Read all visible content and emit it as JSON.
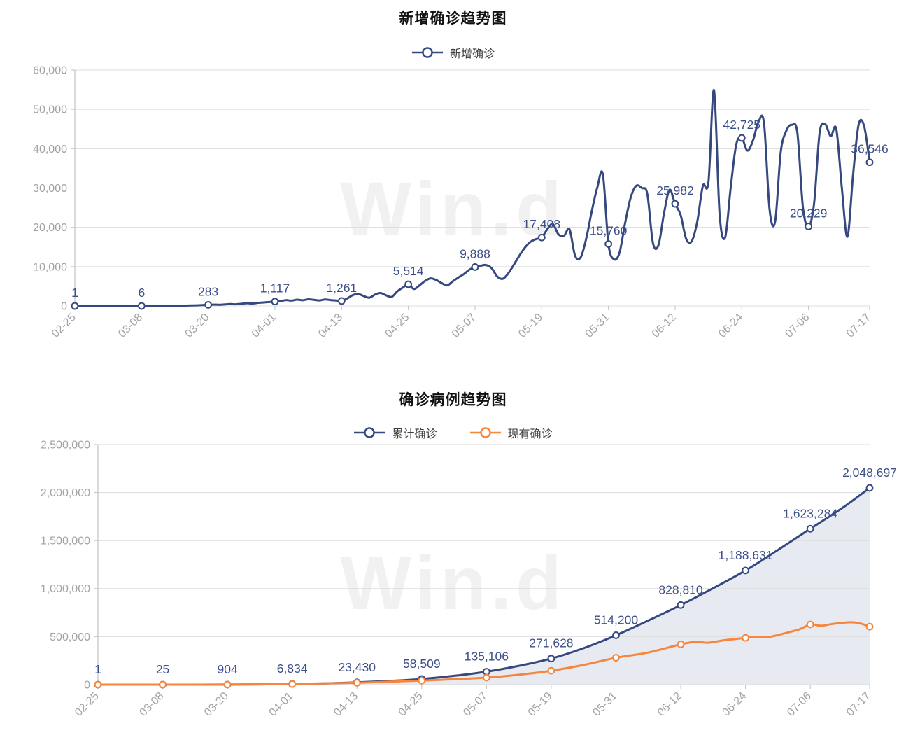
{
  "watermark": {
    "text": "Win.d",
    "corner_text": "Wind"
  },
  "colors": {
    "line_blue": "#36497f",
    "line_orange": "#f6863c",
    "area_fill": "#e8eaf2",
    "grid": "#dcdcdc",
    "axis": "#c2c2c2",
    "tick_label": "#a3a3a3",
    "point_label": "#3c4f8a",
    "title": "#111111",
    "legend_text": "#3d3d3d"
  },
  "chart_data": [
    {
      "type": "line",
      "title": "新增确诊趋势图",
      "legend": [
        {
          "name": "新增确诊",
          "slug": "new-confirmed",
          "color": "#36497f"
        }
      ],
      "x_tick_labels": [
        "02-25",
        "03-08",
        "03-20",
        "04-01",
        "04-13",
        "04-25",
        "05-07",
        "05-19",
        "05-31",
        "06-12",
        "06-24",
        "07-06",
        "07-17"
      ],
      "x_tick_days": [
        0,
        12,
        24,
        36,
        48,
        60,
        72,
        84,
        96,
        108,
        120,
        132,
        143
      ],
      "y_tick_labels": [
        "0",
        "10,000",
        "20,000",
        "30,000",
        "40,000",
        "50,000",
        "60,000"
      ],
      "ylim": [
        0,
        60000
      ],
      "grid": true,
      "legend_position": "top",
      "series": [
        {
          "name": "新增确诊",
          "slug": "new-confirmed",
          "color": "#36497f",
          "area": false,
          "values": [
            1,
            1,
            1,
            2,
            2,
            2,
            3,
            3,
            4,
            4,
            5,
            5,
            6,
            8,
            12,
            18,
            25,
            35,
            50,
            70,
            95,
            125,
            160,
            215,
            283,
            340,
            310,
            400,
            480,
            430,
            560,
            680,
            620,
            790,
            900,
            1010,
            1117,
            1250,
            1480,
            1350,
            1600,
            1450,
            1700,
            1550,
            1400,
            1650,
            1500,
            1380,
            1261,
            1900,
            2750,
            3050,
            2500,
            2100,
            2900,
            3300,
            2700,
            2300,
            3700,
            4650,
            5514,
            4320,
            5230,
            6350,
            7010,
            6620,
            5810,
            5230,
            6280,
            7240,
            8110,
            9230,
            9888,
            10220,
            10410,
            9580,
            7480,
            6920,
            8340,
            10530,
            12840,
            14870,
            16320,
            17020,
            17408,
            19510,
            20830,
            18250,
            17840,
            19480,
            12810,
            12330,
            17080,
            24050,
            30120,
            33510,
            15760,
            11890,
            13570,
            21040,
            27540,
            30560,
            30010,
            28480,
            16110,
            15440,
            23520,
            29540,
            25982,
            23090,
            17010,
            16480,
            21540,
            30560,
            31520,
            54890,
            23480,
            17420,
            30050,
            41080,
            42725,
            39520,
            42010,
            46820,
            46480,
            24510,
            21480,
            39040,
            44520,
            46050,
            44010,
            25060,
            20229,
            26000,
            44000,
            46200,
            43200,
            45000,
            30000,
            17600,
            33000,
            46000,
            45800,
            36546
          ],
          "marker_days": [
            0,
            12,
            24,
            36,
            48,
            60,
            72,
            84,
            96,
            108,
            120,
            132,
            143
          ],
          "point_labels": [
            "1",
            "6",
            "283",
            "1,117",
            "1,261",
            "5,514",
            "9,888",
            "17,408",
            "15,760",
            "25,982",
            "42,725",
            "20,229",
            "36,546"
          ]
        }
      ]
    },
    {
      "type": "line",
      "title": "确诊病例趋势图",
      "legend": [
        {
          "name": "累计确诊",
          "slug": "cumulative-confirmed",
          "color": "#36497f"
        },
        {
          "name": "现有确诊",
          "slug": "active-confirmed",
          "color": "#f6863c"
        }
      ],
      "x_tick_labels": [
        "02-25",
        "03-08",
        "03-20",
        "04-01",
        "04-13",
        "04-25",
        "05-07",
        "05-19",
        "05-31",
        "06-12",
        "06-24",
        "07-06",
        "07-17"
      ],
      "x_tick_days": [
        0,
        12,
        24,
        36,
        48,
        60,
        72,
        84,
        96,
        108,
        120,
        132,
        143
      ],
      "y_tick_labels": [
        "0",
        "500,000",
        "1,000,000",
        "1,500,000",
        "2,000,000",
        "2,500,000"
      ],
      "ylim": [
        0,
        2500000
      ],
      "grid": true,
      "legend_position": "top",
      "series": [
        {
          "name": "累计确诊",
          "slug": "cumulative-confirmed",
          "color": "#36497f",
          "area": true,
          "points": [
            [
              0,
              1
            ],
            [
              6,
              5
            ],
            [
              12,
              25
            ],
            [
              18,
              180
            ],
            [
              24,
              904
            ],
            [
              30,
              2900
            ],
            [
              36,
              6834
            ],
            [
              42,
              13000
            ],
            [
              48,
              23430
            ],
            [
              54,
              38000
            ],
            [
              60,
              58509
            ],
            [
              66,
              92000
            ],
            [
              72,
              135106
            ],
            [
              78,
              196000
            ],
            [
              84,
              271628
            ],
            [
              90,
              380000
            ],
            [
              96,
              514200
            ],
            [
              102,
              668000
            ],
            [
              108,
              828810
            ],
            [
              114,
              1004000
            ],
            [
              120,
              1188631
            ],
            [
              126,
              1402000
            ],
            [
              132,
              1623284
            ],
            [
              138,
              1842000
            ],
            [
              143,
              2048697
            ]
          ],
          "marker_days": [
            0,
            12,
            24,
            36,
            48,
            60,
            72,
            84,
            96,
            108,
            120,
            132,
            143
          ],
          "point_labels": [
            "1",
            "25",
            "904",
            "6,834",
            "23,430",
            "58,509",
            "135,106",
            "271,628",
            "514,200",
            "828,810",
            "1,188,631",
            "1,623,284",
            "2,048,697"
          ]
        },
        {
          "name": "现有确诊",
          "slug": "active-confirmed",
          "color": "#f6863c",
          "area": false,
          "points": [
            [
              0,
              1
            ],
            [
              12,
              20
            ],
            [
              24,
              850
            ],
            [
              36,
              6200
            ],
            [
              48,
              19000
            ],
            [
              60,
              42000
            ],
            [
              72,
              73000
            ],
            [
              78,
              103000
            ],
            [
              84,
              145000
            ],
            [
              90,
              205000
            ],
            [
              96,
              280000
            ],
            [
              102,
              335000
            ],
            [
              108,
              420000
            ],
            [
              111,
              446000
            ],
            [
              113,
              436000
            ],
            [
              116,
              462000
            ],
            [
              120,
              487000
            ],
            [
              122,
              499000
            ],
            [
              124,
              493000
            ],
            [
              127,
              531000
            ],
            [
              130,
              576000
            ],
            [
              132,
              627000
            ],
            [
              134,
              613000
            ],
            [
              136,
              631000
            ],
            [
              139,
              649000
            ],
            [
              141,
              641000
            ],
            [
              143,
              604000
            ]
          ],
          "marker_days": [
            0,
            12,
            24,
            36,
            48,
            60,
            72,
            84,
            96,
            108,
            120,
            132,
            143
          ],
          "point_labels": null
        }
      ]
    }
  ]
}
